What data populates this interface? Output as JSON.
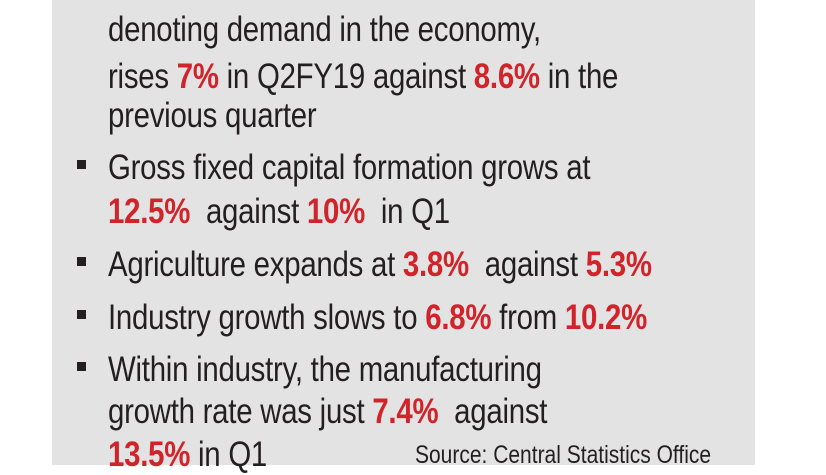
{
  "items": [
    {
      "lines": [
        [
          "denoting demand in the economy,"
        ],
        [
          "rises ",
          "7%",
          " in Q2FY19 against ",
          "8.6%",
          " in the"
        ],
        [
          "previous quarter"
        ]
      ]
    },
    {
      "lines": [
        [
          "Gross fixed capital formation grows at"
        ],
        [
          "12.5%",
          "  against ",
          "10%",
          "  in Q1"
        ]
      ]
    },
    {
      "lines": [
        [
          "Agriculture expands at ",
          "3.8%",
          "  against ",
          "5.3%"
        ]
      ]
    },
    {
      "lines": [
        [
          "Industry growth slows to ",
          "6.8%",
          " from ",
          "10.2%"
        ]
      ]
    },
    {
      "lines": [
        [
          "Within industry, the manufacturing"
        ],
        [
          "growth rate was just ",
          "7.4%",
          "  against"
        ],
        [
          "13.5%",
          " in Q1"
        ]
      ]
    }
  ],
  "source": "Source: Central Statistics Office",
  "colors": {
    "highlight": "#d1232a",
    "text": "#231f20",
    "panel": "#e3e3e3"
  }
}
